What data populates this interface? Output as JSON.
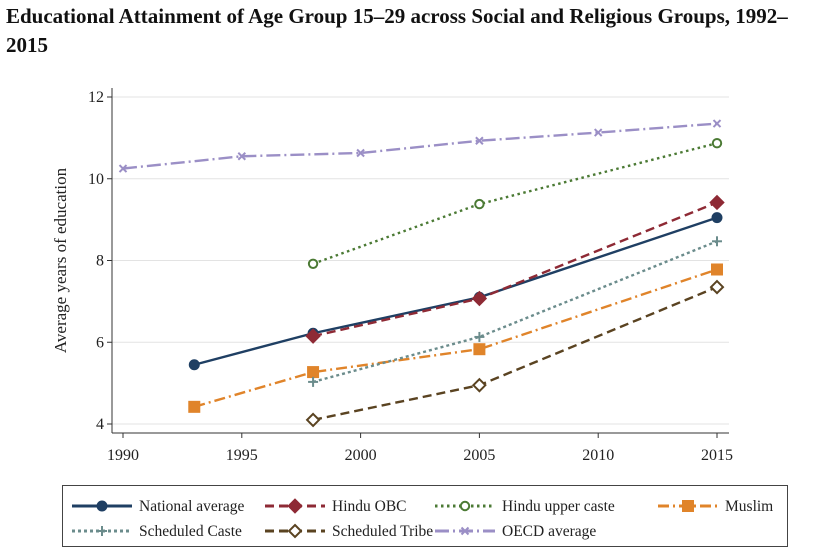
{
  "title": "Educational Attainment of Age Group 15–29 across Social and Religious Groups, 1992–2015",
  "chart_data": {
    "type": "line",
    "title": "Educational Attainment of Age Group 15–29 across Social and Religious Groups, 1992–2015",
    "xlabel": "",
    "ylabel": "Average years of education",
    "xlim": [
      1990,
      2015
    ],
    "ylim": [
      4,
      12
    ],
    "x_ticks": [
      "1990",
      "1995",
      "2000",
      "2005",
      "2010",
      "2015"
    ],
    "y_ticks": [
      "4",
      "6",
      "8",
      "10",
      "12"
    ],
    "grid": true,
    "legend_position": "bottom",
    "series": [
      {
        "name": "National average",
        "color": "#1f3f63",
        "dash": "solid",
        "marker": "circle",
        "points": [
          [
            1993,
            5.45
          ],
          [
            1998,
            6.22
          ],
          [
            2005,
            7.1
          ],
          [
            2015,
            9.05
          ]
        ]
      },
      {
        "name": "Hindu OBC",
        "color": "#8e2a35",
        "dash": "dash",
        "marker": "diamond",
        "points": [
          [
            1998,
            6.15
          ],
          [
            2005,
            7.07
          ],
          [
            2015,
            9.42
          ]
        ]
      },
      {
        "name": "Hindu upper caste",
        "color": "#4b7a34",
        "dash": "dot",
        "marker": "circle-open",
        "points": [
          [
            1998,
            7.92
          ],
          [
            2005,
            9.38
          ],
          [
            2015,
            10.87
          ]
        ]
      },
      {
        "name": "Muslim",
        "color": "#e0842a",
        "dash": "dashdot",
        "marker": "square",
        "points": [
          [
            1993,
            4.42
          ],
          [
            1998,
            5.27
          ],
          [
            2005,
            5.83
          ],
          [
            2015,
            7.78
          ]
        ]
      },
      {
        "name": "Scheduled Caste",
        "color": "#6b8c8c",
        "dash": "shortdot",
        "marker": "plus",
        "points": [
          [
            1998,
            5.03
          ],
          [
            2005,
            6.13
          ],
          [
            2015,
            8.47
          ]
        ]
      },
      {
        "name": "Scheduled Tribe",
        "color": "#5a4321",
        "dash": "dash",
        "marker": "diamond-open",
        "points": [
          [
            1998,
            4.1
          ],
          [
            2005,
            4.95
          ],
          [
            2015,
            7.35
          ]
        ]
      },
      {
        "name": "OECD average",
        "color": "#9b8fc6",
        "dash": "longdashdot",
        "marker": "x",
        "points": [
          [
            1990,
            10.25
          ],
          [
            1995,
            10.55
          ],
          [
            2000,
            10.63
          ],
          [
            2005,
            10.93
          ],
          [
            2010,
            11.13
          ],
          [
            2015,
            11.35
          ]
        ]
      }
    ]
  }
}
